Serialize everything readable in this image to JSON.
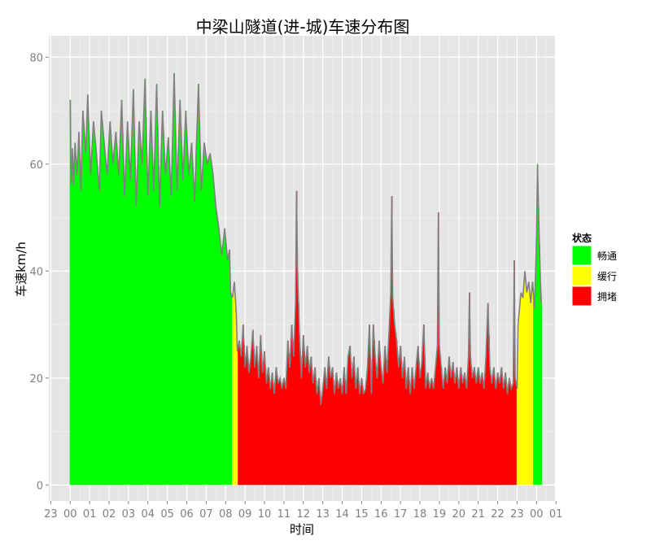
{
  "chart_data": {
    "type": "bar",
    "title": "中梁山隧道(进-城)车速分布图",
    "xlabel": "时间",
    "ylabel": "车速km/h",
    "ylim": [
      -3,
      84
    ],
    "yticks": [
      0,
      20,
      40,
      60,
      80
    ],
    "xlim": [
      -1.1,
      24.95
    ],
    "xtick_labels": [
      "23",
      "00",
      "01",
      "02",
      "03",
      "04",
      "05",
      "06",
      "07",
      "08",
      "09",
      "10",
      "11",
      "12",
      "13",
      "14",
      "15",
      "16",
      "17",
      "18",
      "19",
      "20",
      "21",
      "22",
      "23",
      "00",
      "01"
    ],
    "grid": true,
    "background": "#e5e5e5",
    "series_line_color": "#808080",
    "legend": {
      "title": "状态",
      "position": "right",
      "items": [
        {
          "label": "畅通",
          "color": "#00ff00"
        },
        {
          "label": "缓行",
          "color": "#ffff00"
        },
        {
          "label": "拥堵",
          "color": "#ff0000"
        }
      ]
    },
    "anchors": [
      [
        0.0,
        72
      ],
      [
        0.05,
        56
      ],
      [
        0.12,
        63
      ],
      [
        0.18,
        56
      ],
      [
        0.25,
        64
      ],
      [
        0.35,
        58
      ],
      [
        0.45,
        66
      ],
      [
        0.55,
        55
      ],
      [
        0.65,
        70
      ],
      [
        0.8,
        62
      ],
      [
        0.9,
        73
      ],
      [
        1.05,
        58
      ],
      [
        1.2,
        68
      ],
      [
        1.35,
        62
      ],
      [
        1.5,
        55
      ],
      [
        1.6,
        70
      ],
      [
        1.75,
        64
      ],
      [
        1.9,
        58
      ],
      [
        2.05,
        68
      ],
      [
        2.2,
        60
      ],
      [
        2.35,
        66
      ],
      [
        2.5,
        58
      ],
      [
        2.65,
        72
      ],
      [
        2.8,
        54
      ],
      [
        2.95,
        68
      ],
      [
        3.1,
        57
      ],
      [
        3.25,
        74
      ],
      [
        3.4,
        52
      ],
      [
        3.55,
        68
      ],
      [
        3.7,
        60
      ],
      [
        3.85,
        76
      ],
      [
        4.0,
        54
      ],
      [
        4.15,
        70
      ],
      [
        4.3,
        55
      ],
      [
        4.45,
        75
      ],
      [
        4.6,
        52
      ],
      [
        4.75,
        70
      ],
      [
        4.9,
        58
      ],
      [
        5.05,
        65
      ],
      [
        5.2,
        54
      ],
      [
        5.35,
        77
      ],
      [
        5.5,
        55
      ],
      [
        5.65,
        72
      ],
      [
        5.8,
        57
      ],
      [
        5.95,
        70
      ],
      [
        6.1,
        58
      ],
      [
        6.25,
        64
      ],
      [
        6.4,
        53
      ],
      [
        6.6,
        75
      ],
      [
        6.75,
        55
      ],
      [
        6.9,
        64
      ],
      [
        7.05,
        60
      ],
      [
        7.2,
        62
      ],
      [
        7.35,
        58
      ],
      [
        7.5,
        52
      ],
      [
        7.65,
        48
      ],
      [
        7.8,
        43
      ],
      [
        7.95,
        48
      ],
      [
        8.1,
        42
      ],
      [
        8.2,
        44
      ],
      [
        8.25,
        36
      ],
      [
        8.35,
        35
      ],
      [
        8.45,
        38
      ],
      [
        8.55,
        32
      ],
      [
        8.6,
        25
      ],
      [
        8.7,
        27
      ],
      [
        8.8,
        24
      ],
      [
        8.9,
        30
      ],
      [
        9.0,
        22
      ],
      [
        9.1,
        26
      ],
      [
        9.2,
        21
      ],
      [
        9.3,
        24
      ],
      [
        9.4,
        29
      ],
      [
        9.5,
        22
      ],
      [
        9.6,
        26
      ],
      [
        9.7,
        20
      ],
      [
        9.8,
        28
      ],
      [
        9.9,
        21
      ],
      [
        10.0,
        25
      ],
      [
        10.1,
        19
      ],
      [
        10.2,
        22
      ],
      [
        10.3,
        18
      ],
      [
        10.4,
        21
      ],
      [
        10.5,
        17
      ],
      [
        10.6,
        22
      ],
      [
        10.7,
        19
      ],
      [
        10.8,
        20
      ],
      [
        10.9,
        18
      ],
      [
        11.0,
        20
      ],
      [
        11.1,
        18
      ],
      [
        11.2,
        27
      ],
      [
        11.3,
        22
      ],
      [
        11.4,
        30
      ],
      [
        11.5,
        24
      ],
      [
        11.6,
        34
      ],
      [
        11.65,
        55
      ],
      [
        11.7,
        40
      ],
      [
        11.8,
        28
      ],
      [
        11.9,
        20
      ],
      [
        12.0,
        28
      ],
      [
        12.1,
        22
      ],
      [
        12.2,
        26
      ],
      [
        12.3,
        21
      ],
      [
        12.4,
        24
      ],
      [
        12.5,
        19
      ],
      [
        12.6,
        22
      ],
      [
        12.7,
        17
      ],
      [
        12.8,
        20
      ],
      [
        12.9,
        15
      ],
      [
        13.0,
        18
      ],
      [
        13.1,
        22
      ],
      [
        13.2,
        18
      ],
      [
        13.3,
        24
      ],
      [
        13.4,
        20
      ],
      [
        13.5,
        22
      ],
      [
        13.6,
        17
      ],
      [
        13.7,
        21
      ],
      [
        13.8,
        18
      ],
      [
        13.9,
        20
      ],
      [
        14.0,
        17
      ],
      [
        14.1,
        22
      ],
      [
        14.2,
        17
      ],
      [
        14.3,
        24
      ],
      [
        14.4,
        26
      ],
      [
        14.5,
        20
      ],
      [
        14.6,
        24
      ],
      [
        14.7,
        18
      ],
      [
        14.8,
        22
      ],
      [
        14.9,
        17
      ],
      [
        15.0,
        20
      ],
      [
        15.1,
        17
      ],
      [
        15.2,
        18
      ],
      [
        15.3,
        22
      ],
      [
        15.35,
        26
      ],
      [
        15.4,
        30
      ],
      [
        15.5,
        17
      ],
      [
        15.6,
        30
      ],
      [
        15.7,
        24
      ],
      [
        15.8,
        20
      ],
      [
        15.9,
        27
      ],
      [
        16.0,
        22
      ],
      [
        16.1,
        19
      ],
      [
        16.2,
        26
      ],
      [
        16.3,
        21
      ],
      [
        16.4,
        28
      ],
      [
        16.5,
        36
      ],
      [
        16.55,
        54
      ],
      [
        16.6,
        35
      ],
      [
        16.7,
        30
      ],
      [
        16.8,
        27
      ],
      [
        16.9,
        22
      ],
      [
        17.0,
        26
      ],
      [
        17.1,
        20
      ],
      [
        17.2,
        24
      ],
      [
        17.3,
        18
      ],
      [
        17.4,
        22
      ],
      [
        17.5,
        17
      ],
      [
        17.6,
        22
      ],
      [
        17.7,
        18
      ],
      [
        17.8,
        22
      ],
      [
        17.9,
        26
      ],
      [
        18.0,
        20
      ],
      [
        18.1,
        23
      ],
      [
        18.2,
        30
      ],
      [
        18.3,
        18
      ],
      [
        18.4,
        21
      ],
      [
        18.5,
        18
      ],
      [
        18.6,
        20
      ],
      [
        18.7,
        18
      ],
      [
        18.8,
        22
      ],
      [
        18.9,
        26
      ],
      [
        18.95,
        51
      ],
      [
        19.0,
        26
      ],
      [
        19.1,
        22
      ],
      [
        19.2,
        18
      ],
      [
        19.3,
        22
      ],
      [
        19.4,
        19
      ],
      [
        19.5,
        24
      ],
      [
        19.6,
        20
      ],
      [
        19.7,
        23
      ],
      [
        19.8,
        19
      ],
      [
        19.9,
        22
      ],
      [
        20.0,
        18
      ],
      [
        20.1,
        22
      ],
      [
        20.2,
        19
      ],
      [
        20.3,
        21
      ],
      [
        20.4,
        18
      ],
      [
        20.5,
        24
      ],
      [
        20.55,
        36
      ],
      [
        20.6,
        24
      ],
      [
        20.7,
        20
      ],
      [
        20.8,
        22
      ],
      [
        20.9,
        19
      ],
      [
        21.0,
        22
      ],
      [
        21.1,
        19
      ],
      [
        21.2,
        21
      ],
      [
        21.3,
        18
      ],
      [
        21.4,
        24
      ],
      [
        21.5,
        34
      ],
      [
        21.6,
        22
      ],
      [
        21.7,
        19
      ],
      [
        21.8,
        22
      ],
      [
        21.9,
        18
      ],
      [
        22.0,
        21
      ],
      [
        22.1,
        19
      ],
      [
        22.2,
        22
      ],
      [
        22.3,
        18
      ],
      [
        22.4,
        21
      ],
      [
        22.5,
        17
      ],
      [
        22.6,
        20
      ],
      [
        22.7,
        18
      ],
      [
        22.8,
        19
      ],
      [
        22.85,
        42
      ],
      [
        22.9,
        20
      ],
      [
        23.0,
        18
      ],
      [
        23.05,
        30
      ],
      [
        23.1,
        32
      ],
      [
        23.2,
        36
      ],
      [
        23.3,
        35
      ],
      [
        23.4,
        40
      ],
      [
        23.5,
        36
      ],
      [
        23.6,
        38
      ],
      [
        23.7,
        34
      ],
      [
        23.8,
        38
      ],
      [
        23.9,
        33
      ],
      [
        24.0,
        46
      ],
      [
        24.05,
        60
      ],
      [
        24.1,
        52
      ],
      [
        24.15,
        45
      ],
      [
        24.2,
        38
      ],
      [
        24.25,
        34
      ]
    ],
    "statuses": [
      {
        "from": 0.0,
        "to": 8.3,
        "status": "畅通"
      },
      {
        "from": 8.3,
        "to": 8.6,
        "status": "缓行"
      },
      {
        "from": 8.6,
        "to": 23.0,
        "status": "拥堵"
      },
      {
        "from": 23.0,
        "to": 23.85,
        "status": "缓行"
      },
      {
        "from": 23.85,
        "to": 24.25,
        "status": "畅通"
      }
    ]
  }
}
